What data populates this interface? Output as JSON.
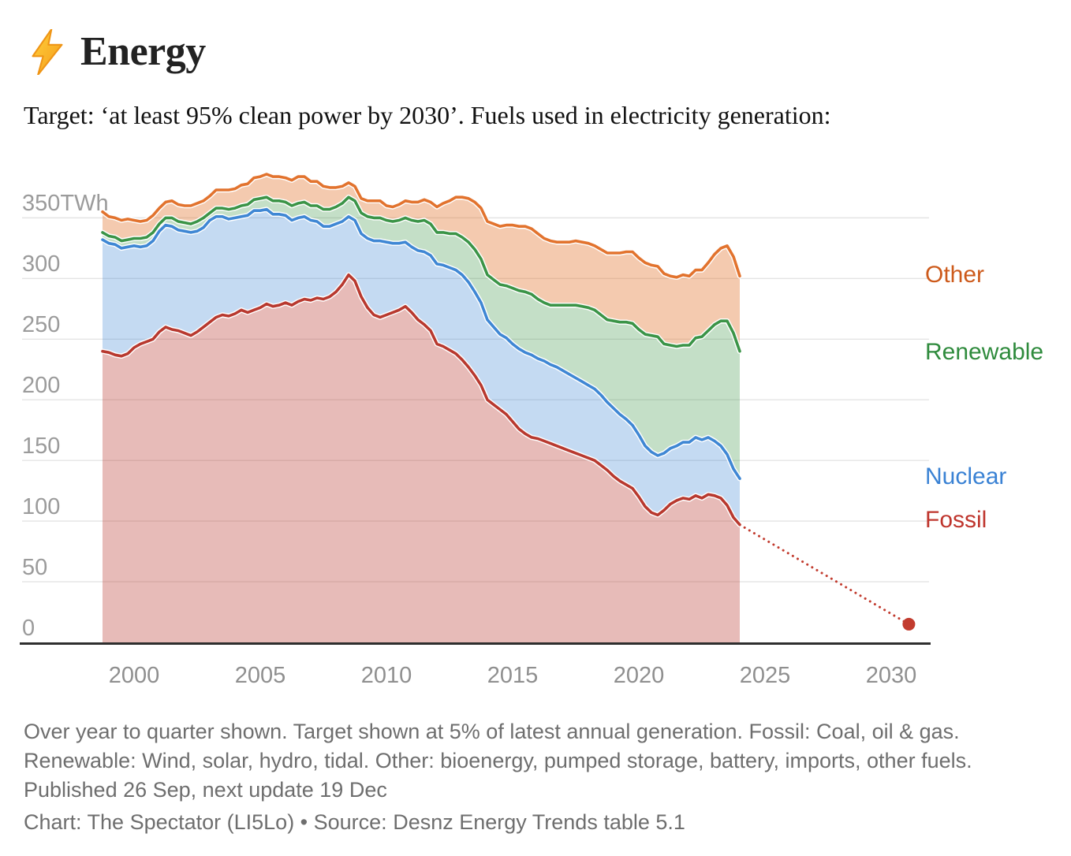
{
  "header": {
    "title": "Energy",
    "icon": "lightning-bolt"
  },
  "subtitle": "Target: ‘at least 95% clean power by 2030’. Fuels used in electricity generation:",
  "notes": "Over year to quarter shown. Target shown at 5% of latest annual generation. Fossil: Coal, oil & gas. Renewable: Wind, solar, hydro, tidal. Other: bioenergy, pumped storage, battery, imports, other fuels. Published 26 Sep, next update 19 Dec",
  "credit": "Chart: The Spectator (LI5Lo) • Source: Desnz Energy Trends table 5.1",
  "chart_data": {
    "type": "area",
    "stacked": true,
    "unit": "TWh",
    "ylim": [
      0,
      390
    ],
    "grid": true,
    "legend_position": "right",
    "x_start": 1998.75,
    "x_step": 0.25,
    "x_end": 2024,
    "x_axis": {
      "tick_values": [
        2000,
        2005,
        2010,
        2015,
        2020,
        2025,
        2030
      ],
      "labels": [
        "2000",
        "2005",
        "2010",
        "2015",
        "2020",
        "2025",
        "2030"
      ]
    },
    "y_axis": {
      "tick_values": [
        350,
        300,
        250,
        200,
        150,
        100,
        50,
        0
      ],
      "labels": [
        "350TWh",
        "300",
        "250",
        "200",
        "150",
        "100",
        "50",
        "0"
      ]
    },
    "series": [
      {
        "name": "Fossil",
        "color": "#b8392f",
        "label_color": "#bf352d",
        "fill_opacity": 0.34,
        "values": [
          240,
          239,
          237,
          236,
          238,
          243,
          246,
          248,
          250,
          256,
          260,
          258,
          257,
          255,
          253,
          256,
          260,
          264,
          268,
          270,
          269,
          271,
          274,
          272,
          274,
          276,
          279,
          277,
          278,
          280,
          278,
          281,
          283,
          282,
          284,
          283,
          285,
          289,
          295,
          303,
          298,
          285,
          276,
          270,
          268,
          270,
          272,
          274,
          277,
          272,
          266,
          262,
          257,
          246,
          244,
          241,
          238,
          233,
          227,
          220,
          212,
          200,
          196,
          192,
          188,
          182,
          176,
          172,
          169,
          168,
          166,
          164,
          162,
          160,
          158,
          156,
          154,
          152,
          150,
          146,
          142,
          137,
          133,
          130,
          127,
          120,
          112,
          107,
          105,
          109,
          114,
          117,
          119,
          118,
          121,
          119,
          122,
          121,
          119,
          113,
          103,
          97
        ]
      },
      {
        "name": "Nuclear",
        "color": "#3f87d4",
        "label_color": "#3a82d4",
        "fill_opacity": 0.31,
        "values": [
          92,
          90,
          91,
          89,
          88,
          84,
          80,
          79,
          81,
          83,
          84,
          85,
          83,
          84,
          85,
          83,
          82,
          84,
          83,
          81,
          80,
          79,
          77,
          80,
          82,
          80,
          78,
          76,
          75,
          72,
          70,
          69,
          68,
          66,
          63,
          60,
          58,
          56,
          52,
          48,
          50,
          52,
          57,
          61,
          63,
          60,
          57,
          55,
          53,
          54,
          57,
          60,
          62,
          66,
          67,
          68,
          69,
          70,
          70,
          69,
          68,
          66,
          64,
          62,
          63,
          64,
          66,
          67,
          68,
          66,
          66,
          65,
          65,
          64,
          63,
          62,
          61,
          60,
          59,
          58,
          56,
          56,
          55,
          54,
          52,
          51,
          50,
          50,
          49,
          47,
          46,
          45,
          46,
          47,
          48,
          48,
          47,
          45,
          43,
          42,
          40,
          38
        ]
      },
      {
        "name": "Renewable",
        "color": "#3b9447",
        "label_color": "#2f8b3d",
        "fill_opacity": 0.3,
        "values": [
          6,
          6,
          6,
          6,
          6,
          6,
          7,
          7,
          7,
          6,
          6,
          7,
          7,
          7,
          7,
          8,
          8,
          6,
          7,
          7,
          8,
          8,
          9,
          9,
          9,
          10,
          10,
          11,
          11,
          11,
          12,
          12,
          12,
          12,
          13,
          14,
          14,
          14,
          15,
          16,
          16,
          17,
          18,
          19,
          19,
          18,
          18,
          19,
          20,
          22,
          24,
          26,
          26,
          26,
          27,
          28,
          30,
          31,
          33,
          35,
          36,
          37,
          39,
          41,
          43,
          46,
          48,
          50,
          50,
          49,
          48,
          49,
          51,
          54,
          57,
          60,
          62,
          64,
          65,
          66,
          68,
          72,
          76,
          80,
          84,
          87,
          92,
          96,
          98,
          90,
          85,
          82,
          80,
          80,
          82,
          85,
          88,
          96,
          103,
          110,
          112,
          105
        ]
      },
      {
        "name": "Other",
        "color": "#e2732e",
        "label_color": "#cd5a1b",
        "fill_opacity": 0.38,
        "values": [
          17,
          16,
          16,
          17,
          17,
          15,
          14,
          14,
          14,
          13,
          13,
          14,
          14,
          14,
          15,
          15,
          14,
          14,
          15,
          15,
          16,
          16,
          17,
          17,
          18,
          18,
          19,
          20,
          20,
          20,
          21,
          22,
          21,
          20,
          20,
          19,
          18,
          16,
          14,
          12,
          12,
          12,
          13,
          14,
          14,
          12,
          12,
          13,
          14,
          15,
          16,
          17,
          18,
          21,
          24,
          27,
          30,
          33,
          36,
          39,
          42,
          44,
          46,
          48,
          50,
          52,
          53,
          54,
          54,
          54,
          53,
          53,
          52,
          52,
          52,
          53,
          53,
          53,
          53,
          54,
          55,
          56,
          57,
          58,
          59,
          59,
          59,
          58,
          58,
          58,
          57,
          57,
          58,
          57,
          56,
          55,
          56,
          58,
          60,
          62,
          63,
          62
        ]
      }
    ],
    "legend": [
      {
        "label": "Other",
        "color": "#cd5a1b"
      },
      {
        "label": "Renewable",
        "color": "#2f8b3d"
      },
      {
        "label": "Nuclear",
        "color": "#3a82d4"
      },
      {
        "label": "Fossil",
        "color": "#bf352d"
      }
    ],
    "target": {
      "x": 2030.7,
      "value": 15,
      "color": "#c23b2e",
      "series": "Fossil",
      "style": "dotted"
    }
  }
}
